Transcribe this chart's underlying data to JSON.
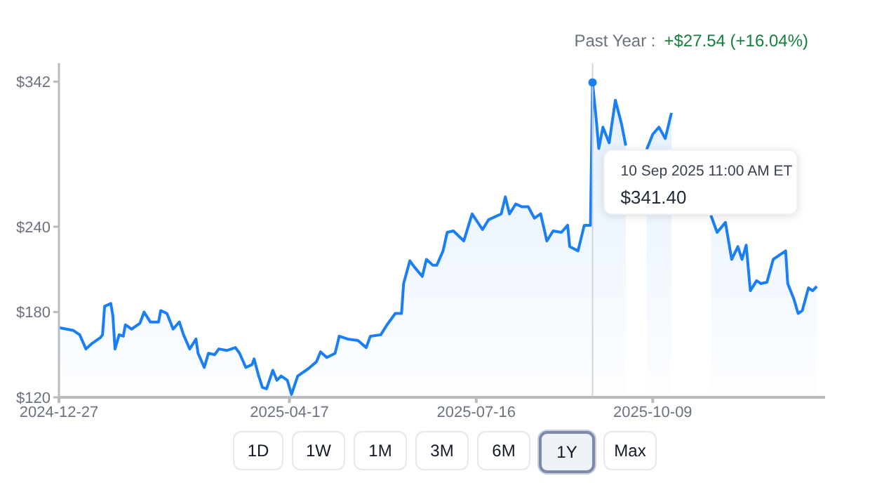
{
  "chart_data": {
    "type": "area",
    "title": "Past Year :",
    "subtitle": "+$27.54 (+16.04%)",
    "x": [
      "2024-12-27",
      "2025-01-03",
      "2025-01-06",
      "2025-01-09",
      "2025-01-12",
      "2025-01-16",
      "2025-01-17",
      "2025-01-18",
      "2025-01-21",
      "2025-01-22",
      "2025-01-23",
      "2025-01-25",
      "2025-01-27",
      "2025-01-28",
      "2025-01-31",
      "2025-02-04",
      "2025-02-06",
      "2025-02-09",
      "2025-02-13",
      "2025-02-14",
      "2025-02-17",
      "2025-02-20",
      "2025-02-23",
      "2025-02-25",
      "2025-02-28",
      "2025-03-03",
      "2025-03-04",
      "2025-03-07",
      "2025-03-09",
      "2025-03-12",
      "2025-03-14",
      "2025-03-18",
      "2025-03-22",
      "2025-03-24",
      "2025-03-27",
      "2025-03-30",
      "2025-03-31",
      "2025-04-02",
      "2025-04-04",
      "2025-04-06",
      "2025-04-09",
      "2025-04-11",
      "2025-04-13",
      "2025-04-16",
      "2025-04-18",
      "2025-04-21",
      "2025-04-26",
      "2025-04-30",
      "2025-05-02",
      "2025-05-05",
      "2025-05-09",
      "2025-05-11",
      "2025-05-15",
      "2025-05-20",
      "2025-05-24",
      "2025-05-26",
      "2025-05-31",
      "2025-06-03",
      "2025-06-07",
      "2025-06-10",
      "2025-06-11",
      "2025-06-14",
      "2025-06-16",
      "2025-06-20",
      "2025-06-22",
      "2025-06-25",
      "2025-06-27",
      "2025-06-30",
      "2025-07-02",
      "2025-07-05",
      "2025-07-10",
      "2025-07-14",
      "2025-07-19",
      "2025-07-22",
      "2025-07-28",
      "2025-07-30",
      "2025-08-01",
      "2025-08-04",
      "2025-08-07",
      "2025-08-10",
      "2025-08-13",
      "2025-08-16",
      "2025-08-19",
      "2025-08-22",
      "2025-08-26",
      "2025-08-29",
      "2025-08-30",
      "2025-09-03",
      "2025-09-06",
      "2025-09-09",
      "2025-09-10",
      "2025-09-12",
      "2025-09-13",
      "2025-09-15",
      "2025-09-18",
      "2025-09-21",
      "2025-09-24",
      "2025-09-26",
      "2025-09-29",
      "2025-10-06",
      "2025-10-09",
      "2025-10-12",
      "2025-10-15",
      "2025-10-18",
      "2025-10-19",
      "2025-10-28",
      "2025-11-06",
      "2025-11-09",
      "2025-11-13",
      "2025-11-16",
      "2025-11-19",
      "2025-11-21",
      "2025-11-23",
      "2025-11-25",
      "2025-11-28",
      "2025-11-30",
      "2025-12-03",
      "2025-12-06",
      "2025-12-12",
      "2025-12-13",
      "2025-12-16",
      "2025-12-18",
      "2025-12-20",
      "2025-12-23",
      "2025-12-25",
      "2025-12-27"
    ],
    "series": [
      {
        "color": "#1a7ff5",
        "values": [
          169,
          167,
          164,
          154,
          158,
          162,
          164,
          184,
          186,
          177,
          154,
          164,
          163,
          171,
          168,
          172,
          180,
          173,
          173,
          181,
          179,
          168,
          173,
          164,
          154,
          161,
          151,
          141,
          151,
          150,
          154,
          153,
          155,
          151,
          141,
          143,
          147,
          136,
          127,
          126,
          139,
          132,
          135,
          132,
          122,
          135,
          140,
          145,
          152,
          148,
          151,
          163,
          161,
          160,
          155,
          163,
          164,
          171,
          179,
          179,
          200,
          216,
          212,
          205,
          217,
          213,
          213,
          223,
          236,
          237,
          230,
          249,
          238,
          245,
          249,
          261,
          249,
          256,
          254,
          254,
          246,
          249,
          230,
          237,
          236,
          241,
          226,
          223,
          241,
          241,
          341.4,
          312,
          295,
          310,
          299,
          329,
          312,
          297,
          null,
          294,
          305,
          310,
          302,
          320,
          null,
          null,
          248,
          236,
          243,
          217,
          226,
          217,
          227,
          195,
          202,
          200,
          201,
          217,
          223,
          200,
          189,
          179,
          181,
          197,
          195,
          198
        ]
      }
    ],
    "xlim": [
      "2024-12-27",
      "2025-12-31"
    ],
    "xticks": [
      "2024-12-27",
      "2025-04-17",
      "2025-07-16",
      "2025-10-09"
    ],
    "ylim": [
      120,
      355
    ],
    "yticks": [
      {
        "value": 120,
        "label": "$120"
      },
      {
        "value": 180,
        "label": "$180"
      },
      {
        "value": 240,
        "label": "$240"
      },
      {
        "value": 342,
        "label": "$342"
      }
    ],
    "grid": false,
    "marker": "none",
    "line_style": "solid",
    "ref_lines": [
      {
        "axis": "x",
        "value": "2025-09-10",
        "label": null,
        "color": "#d1d5db"
      }
    ],
    "annotations": [
      "10 Sep 2025 11:00 AM ET",
      "$341.40",
      "1D",
      "1W",
      "1M",
      "3M",
      "6M",
      "1Y",
      "Max"
    ]
  }
}
